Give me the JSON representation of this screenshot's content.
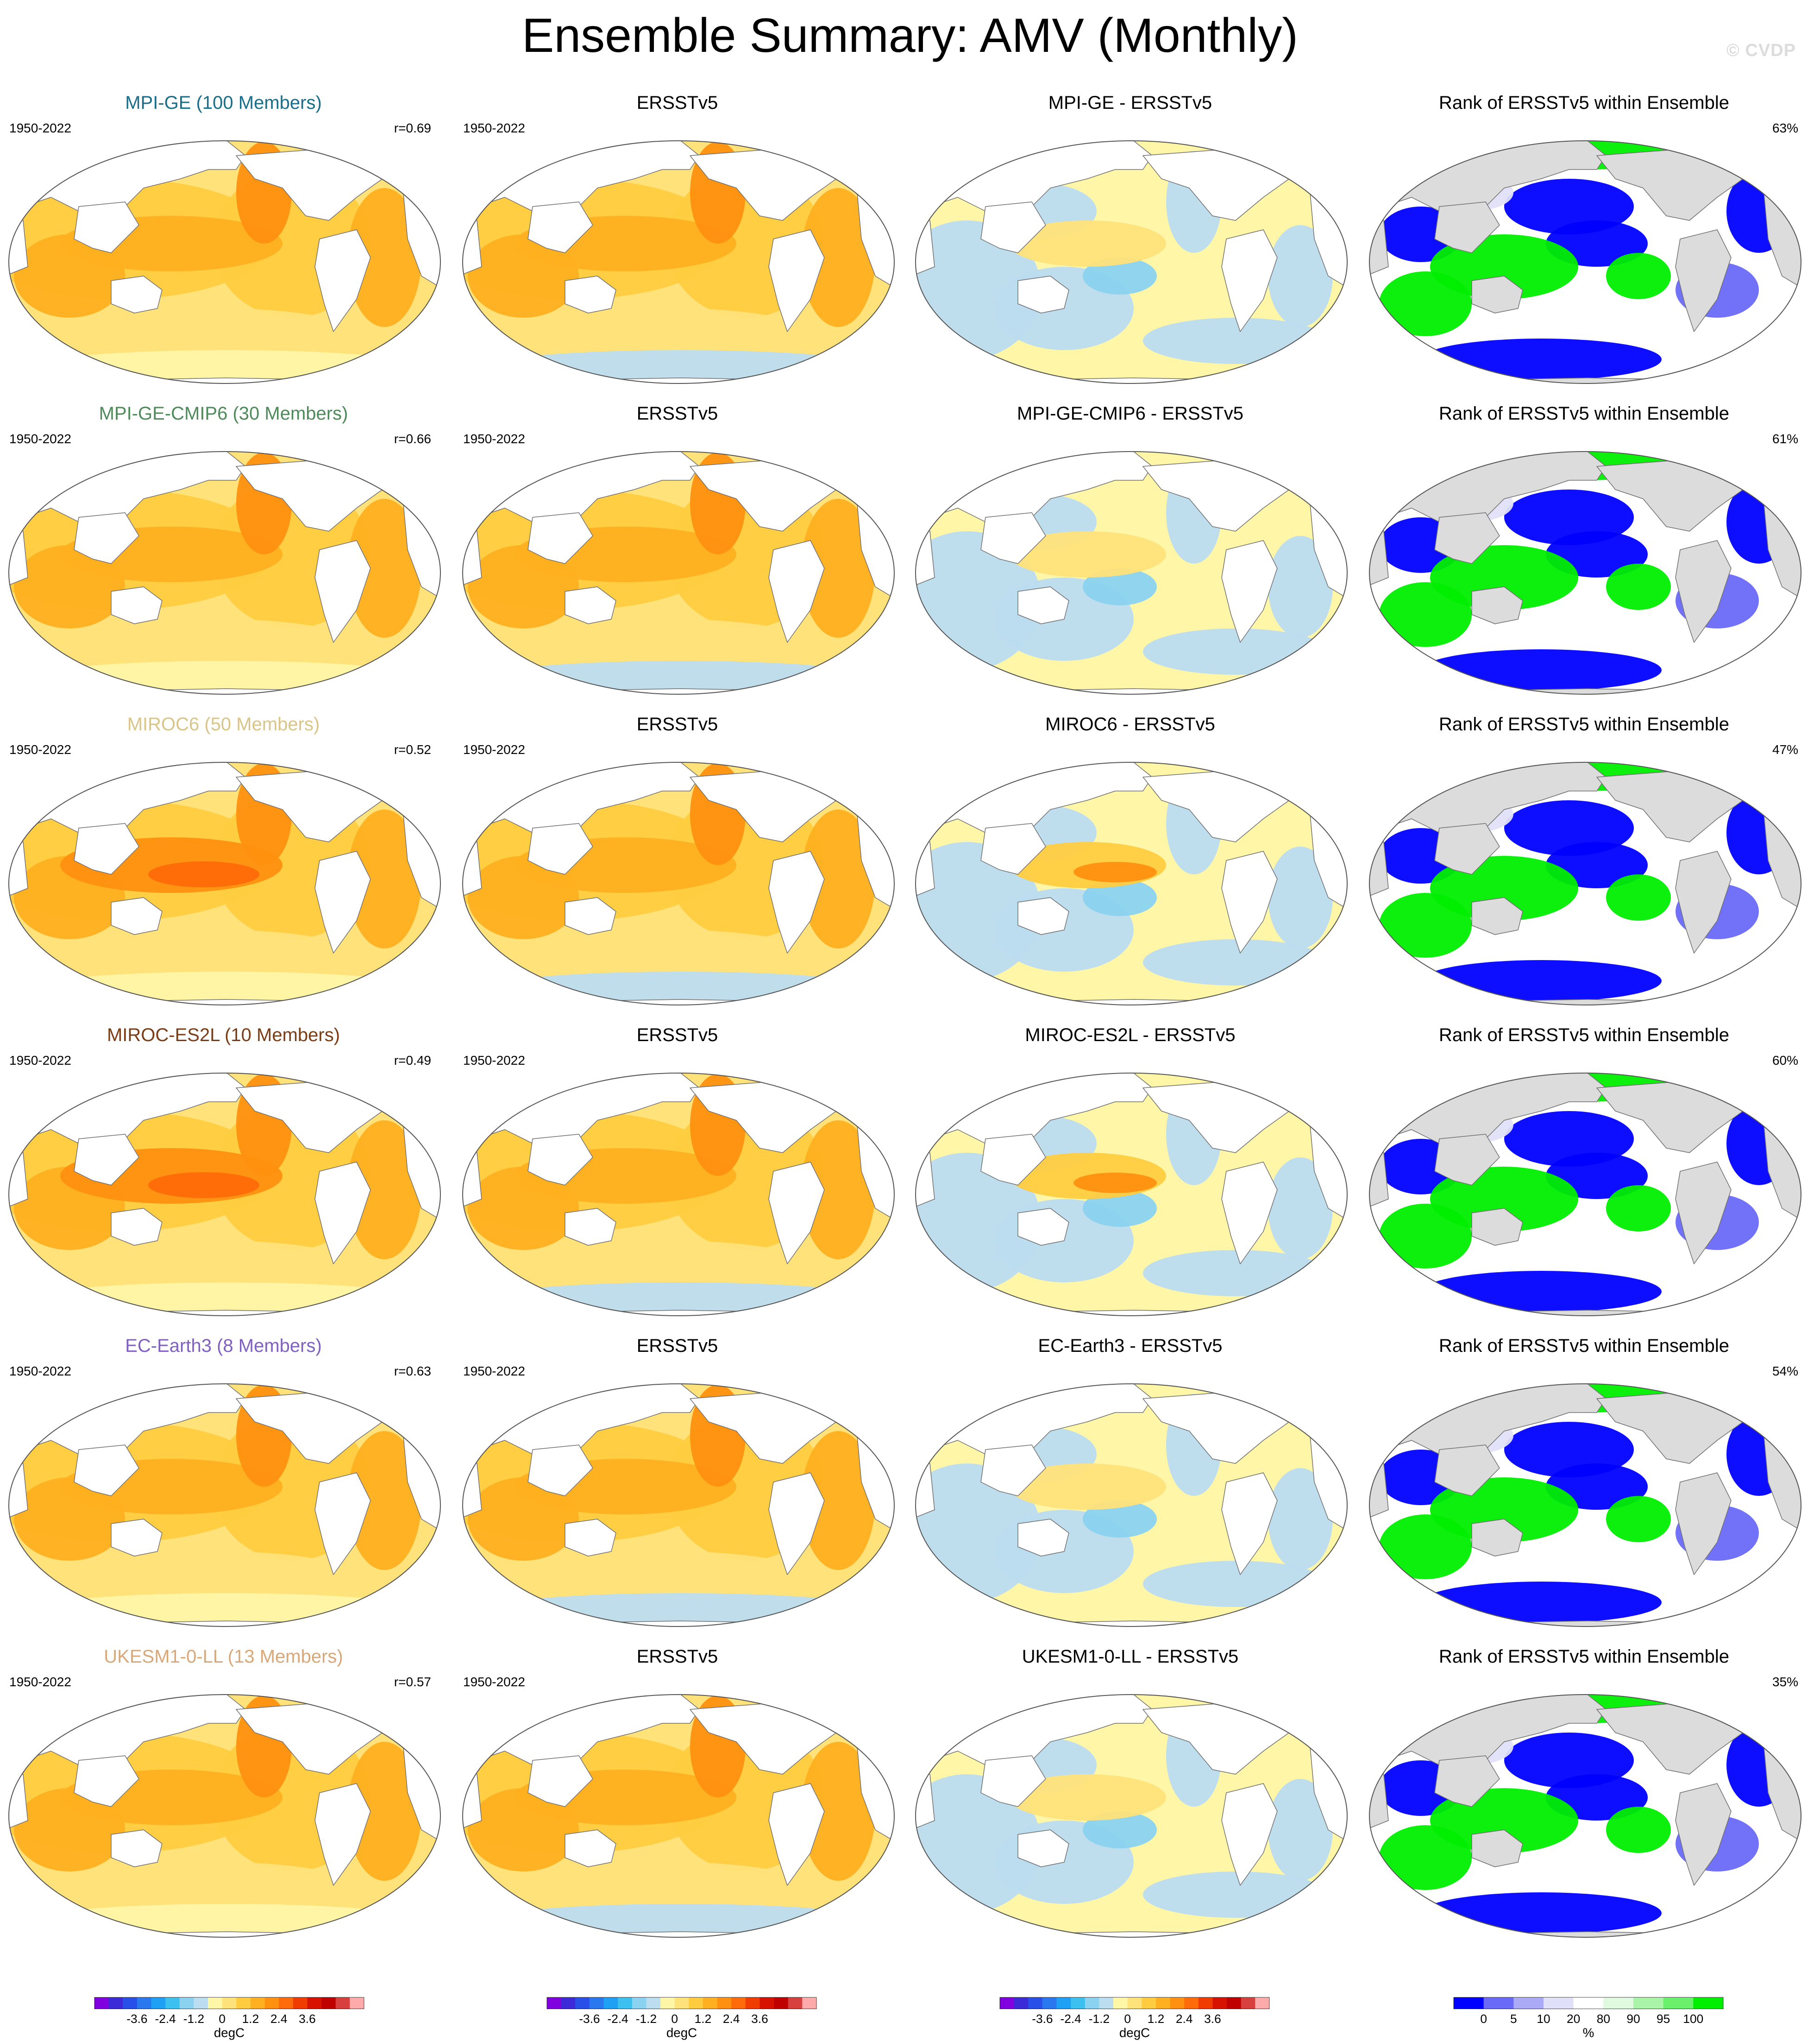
{
  "page": {
    "title": "Ensemble Summary: AMV (Monthly)",
    "watermark": "© CVDP"
  },
  "rows": [
    {
      "model_title": "MPI-GE (100 Members)",
      "model_color": "#1a6e8a",
      "years": "1950-2022",
      "r": "r=0.69",
      "obs_title": "ERSSTv5",
      "obs_years": "1950-2022",
      "diff_title": "MPI-GE - ERSSTv5",
      "rank_title": "Rank of ERSSTv5 within Ensemble",
      "rank_pct": "63%",
      "model_warmth": 0.62,
      "diff_bias": 0.15
    },
    {
      "model_title": "MPI-GE-CMIP6 (30 Members)",
      "model_color": "#4f8a5a",
      "years": "1950-2022",
      "r": "r=0.66",
      "obs_title": "ERSSTv5",
      "obs_years": "1950-2022",
      "diff_title": "MPI-GE-CMIP6 - ERSSTv5",
      "rank_title": "Rank of ERSSTv5 within Ensemble",
      "rank_pct": "61%",
      "model_warmth": 0.7,
      "diff_bias": 0.05
    },
    {
      "model_title": "MIROC6 (50 Members)",
      "model_color": "#d9c48a",
      "years": "1950-2022",
      "r": "r=0.52",
      "obs_title": "ERSSTv5",
      "obs_years": "1950-2022",
      "diff_title": "MIROC6 - ERSSTv5",
      "rank_title": "Rank of ERSSTv5 within Ensemble",
      "rank_pct": "47%",
      "model_warmth": 0.8,
      "diff_bias": 0.3
    },
    {
      "model_title": "MIROC-ES2L (10 Members)",
      "model_color": "#7a3d16",
      "years": "1950-2022",
      "r": "r=0.49",
      "obs_title": "ERSSTv5",
      "obs_years": "1950-2022",
      "diff_title": "MIROC-ES2L - ERSSTv5",
      "rank_title": "Rank of ERSSTv5 within Ensemble",
      "rank_pct": "60%",
      "model_warmth": 0.82,
      "diff_bias": 0.35
    },
    {
      "model_title": "EC-Earth3 (8 Members)",
      "model_color": "#8060c0",
      "years": "1950-2022",
      "r": "r=0.63",
      "obs_title": "ERSSTv5",
      "obs_years": "1950-2022",
      "diff_title": "EC-Earth3 - ERSSTv5",
      "rank_title": "Rank of ERSSTv5 within Ensemble",
      "rank_pct": "54%",
      "model_warmth": 0.5,
      "diff_bias": -0.05
    },
    {
      "model_title": "UKESM1-0-LL (13 Members)",
      "model_color": "#d8a878",
      "years": "1950-2022",
      "r": "r=0.57",
      "obs_title": "ERSSTv5",
      "obs_years": "1950-2022",
      "diff_title": "UKESM1-0-LL - ERSSTv5",
      "rank_title": "Rank of ERSSTv5 within Ensemble",
      "rank_pct": "35%",
      "model_warmth": 0.72,
      "diff_bias": 0.1
    }
  ],
  "colorbars": {
    "sst": {
      "unit": "degC",
      "ticks": [
        "-3.6",
        "-2.4",
        "-1.2",
        "0",
        "1.2",
        "2.4",
        "3.6"
      ],
      "colors": [
        "#8000e0",
        "#3c2ad8",
        "#2850e8",
        "#2a78f0",
        "#1ea0f5",
        "#3cc0f0",
        "#8ad2f0",
        "#bcdcf0",
        "#fff6a8",
        "#ffe27a",
        "#ffcc40",
        "#ffb020",
        "#ff9010",
        "#ff6a0a",
        "#f03c00",
        "#d81200",
        "#c00000",
        "#d84040",
        "#ffaaaa"
      ]
    },
    "rank": {
      "unit": "%",
      "ticks": [
        "0",
        "5",
        "10",
        "20",
        "80",
        "90",
        "95",
        "100"
      ],
      "colors": [
        "#0000ff",
        "#6a6af8",
        "#aaaaf6",
        "#e0e0f8",
        "#ffffff",
        "#e0fae0",
        "#aaf4aa",
        "#6af06a",
        "#00ee00"
      ]
    }
  },
  "map_colors": {
    "land_white": "#ffffff",
    "land_gray": "#dcdcdc",
    "coast": "#707070"
  }
}
